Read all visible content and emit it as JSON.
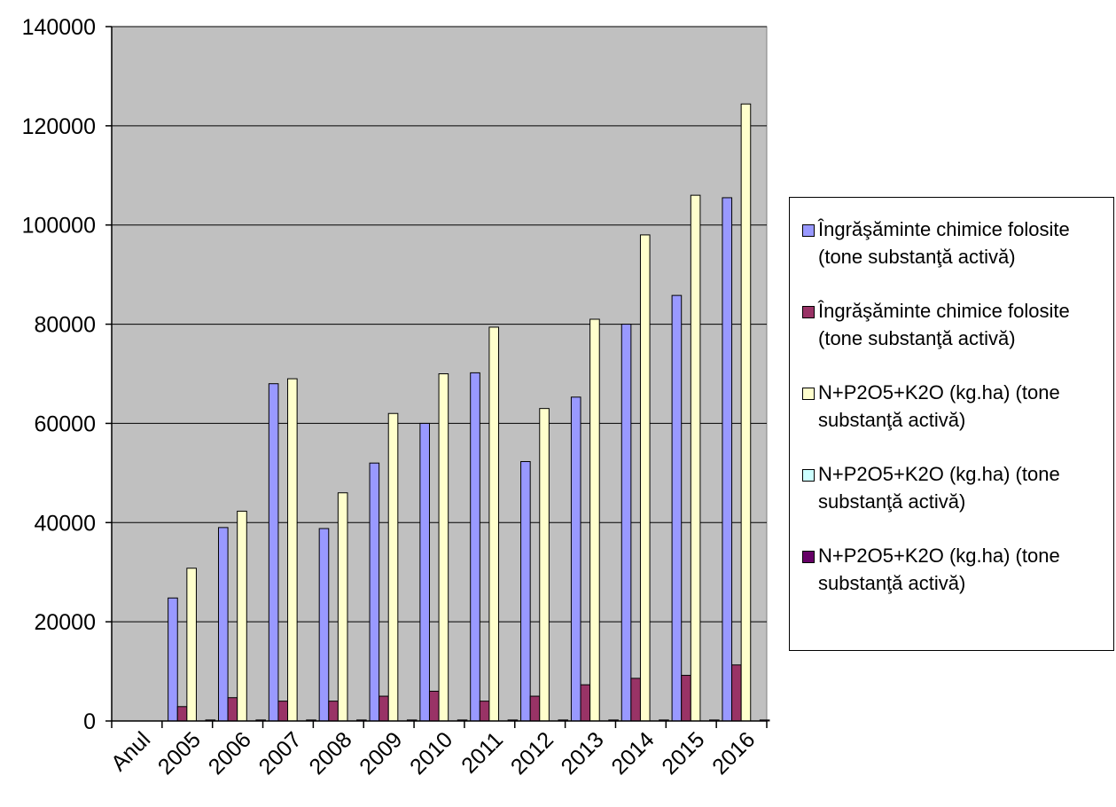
{
  "chart_data": {
    "type": "bar",
    "categories": [
      "Anul",
      "2005",
      "2006",
      "2007",
      "2008",
      "2009",
      "2010",
      "2011",
      "2012",
      "2013",
      "2014",
      "2015",
      "2016"
    ],
    "series": [
      {
        "name": "Îngrăşăminte chimice folosite (tone substanţă activă)",
        "color": "#9999ff",
        "values": [
          0,
          24800,
          39000,
          68000,
          38800,
          52000,
          60000,
          70200,
          52300,
          65300,
          80000,
          85800,
          105500
        ]
      },
      {
        "name": "Îngrăşăminte chimice folosite (tone substanţă activă)",
        "color": "#993366",
        "values": [
          0,
          2900,
          4700,
          4000,
          4000,
          5000,
          6000,
          4000,
          5000,
          7300,
          8600,
          9200,
          11300
        ]
      },
      {
        "name": "N+P2O5+K2O (kg.ha) (tone substanţă activă)",
        "color": "#ffffcc",
        "values": [
          0,
          30800,
          42300,
          69000,
          46000,
          62000,
          70000,
          79400,
          63000,
          81000,
          98000,
          106000,
          124400
        ]
      },
      {
        "name": "N+P2O5+K2O (kg.ha) (tone substanţă activă)",
        "color": "#ccffff",
        "values": [
          0,
          0,
          0,
          0,
          0,
          0,
          0,
          0,
          0,
          0,
          0,
          0,
          0
        ]
      },
      {
        "name": "N+P2O5+K2O (kg.ha) (tone substanţă activă)",
        "color": "#660066",
        "values": [
          0,
          200,
          200,
          200,
          200,
          200,
          200,
          200,
          200,
          200,
          200,
          200,
          200
        ]
      }
    ],
    "ylim": [
      0,
      140000
    ],
    "yticks": [
      "0",
      "20000",
      "40000",
      "60000",
      "80000",
      "100000",
      "120000",
      "140000"
    ],
    "grid": true,
    "legend_position": "right",
    "plot_background": "#c0c0c0"
  }
}
